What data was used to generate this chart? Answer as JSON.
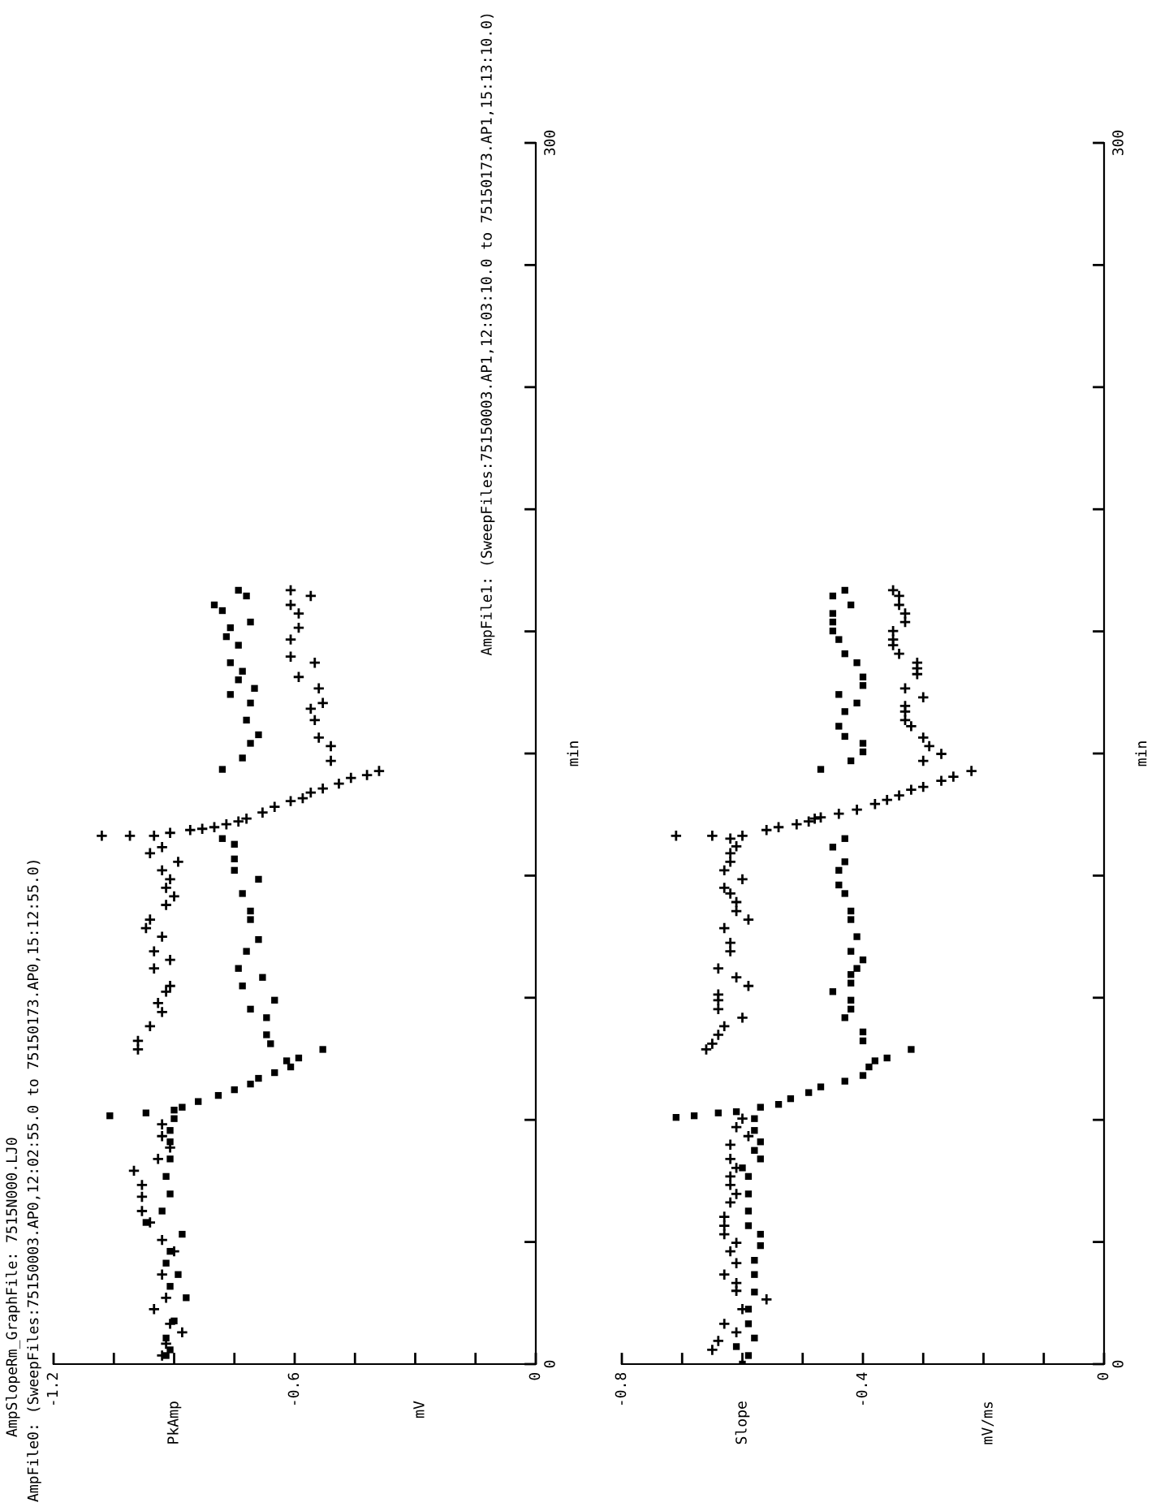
{
  "chart_data": [
    {
      "type": "scatter",
      "title": "AmpSlopeRm_GraphFile: 7515N000.LJ0",
      "subtitle": "AmpFile0: (SweepFiles:75150003.AP0,12:02:55.0 to 75150173.AP0,15:12:55.0)",
      "annotations": [
        "AmpFile1: (SweepFiles:75150003.AP1,12:03:10.0 to 75150173.AP1,15:13:10.0)",
        "PkAmp",
        "mV"
      ],
      "ylabel": "min",
      "ylim": [
        0,
        300
      ],
      "yticks": [
        0,
        {
          "value": 30,
          "label": null
        },
        {
          "value": 60,
          "label": null
        },
        {
          "value": 90,
          "label": null
        },
        {
          "value": 120,
          "label": null
        },
        {
          "value": 150,
          "label": null
        },
        {
          "value": 180,
          "label": null
        },
        {
          "value": 210,
          "label": null
        },
        {
          "value": 240,
          "label": null
        },
        {
          "value": 270,
          "label": null
        },
        300
      ],
      "xlim": [
        -1.2,
        0
      ],
      "xticks": [
        -1.2,
        {
          "value": -1.05,
          "label": null
        },
        {
          "value": -0.9,
          "label": null
        },
        {
          "value": -0.75,
          "label": null
        },
        -0.6,
        {
          "value": -0.45,
          "label": null
        },
        {
          "value": -0.3,
          "label": null
        },
        {
          "value": -0.15,
          "label": null
        },
        0
      ],
      "series": [
        {
          "color": "#000000",
          "marker": "square",
          "values": [
            2.1,
            3.5,
            6.4,
            10.6,
            16.3,
            19.1,
            22.0,
            24.8,
            27.7,
            31.9,
            34.8,
            37.6,
            41.8,
            46.1,
            50.4,
            54.6,
            57.4,
            60.3,
            61.0,
            61.7,
            62.4,
            63.1,
            64.5,
            66.0,
            67.4,
            68.8,
            70.2,
            71.6,
            73.0,
            74.5,
            75.2,
            77.3,
            78.7,
            80.9,
            85.1,
            87.2,
            89.4,
            92.9,
            95.0,
            97.2,
            101.4,
            104.3,
            109.2,
            111.3,
            115.6,
            119.1,
            121.3,
            124.1,
            127.7,
            129.1,
            146.1,
            148.9,
            152.5,
            154.6,
            158.2,
            162.4,
            164.5,
            166.0,
            168.1,
            170.2,
            172.3,
            176.6,
            178.7,
            180.9,
            182.3,
            185.1,
            186.5,
            188.7,
            190.1
          ],
          "x": [
            -0.92,
            -0.91,
            -0.92,
            -0.9,
            -0.87,
            -0.91,
            -0.89,
            -0.92,
            -0.91,
            -0.88,
            -0.97,
            -0.93,
            -0.91,
            -0.92,
            -0.91,
            -0.91,
            -0.91,
            -0.9,
            -1.06,
            -0.97,
            -0.9,
            -0.88,
            -0.84,
            -0.79,
            -0.75,
            -0.71,
            -0.69,
            -0.65,
            -0.61,
            -0.62,
            -0.59,
            -0.53,
            -0.66,
            -0.67,
            -0.67,
            -0.71,
            -0.65,
            -0.73,
            -0.68,
            -0.74,
            -0.72,
            -0.69,
            -0.71,
            -0.71,
            -0.73,
            -0.69,
            -0.75,
            -0.75,
            -0.75,
            -0.78,
            -0.78,
            -0.73,
            -0.71,
            -0.69,
            -0.72,
            -0.71,
            -0.76,
            -0.7,
            -0.74,
            -0.73,
            -0.76,
            -0.74,
            -0.77,
            -0.76,
            -0.71,
            -0.78,
            -0.8,
            -0.72,
            -0.74
          ]
        },
        {
          "color": "#000000",
          "marker": "cross",
          "values": [
            2.1,
            5.0,
            7.8,
            9.9,
            13.5,
            16.3,
            22.0,
            27.7,
            30.5,
            34.8,
            37.6,
            41.1,
            44.0,
            47.5,
            50.4,
            53.2,
            56.0,
            58.9,
            77.3,
            79.4,
            83.0,
            86.5,
            88.7,
            91.5,
            92.9,
            97.2,
            99.3,
            101.4,
            105.0,
            107.1,
            109.2,
            112.8,
            114.9,
            117.0,
            119.1,
            121.3,
            123.4,
            125.5,
            127.0,
            129.8,
            129.8,
            129.8,
            130.5,
            131.2,
            131.5,
            131.9,
            132.6,
            133.3,
            134.0,
            135.5,
            136.9,
            138.3,
            139.0,
            140.4,
            141.4,
            142.6,
            144.0,
            144.7,
            145.7,
            148.2,
            151.8,
            153.9,
            158.2,
            161.0,
            162.4,
            166.0,
            168.8,
            172.3,
            173.8,
            178.0,
            180.9,
            184.4,
            186.5,
            188.7,
            190.1
          ],
          "x": [
            -0.93,
            -0.92,
            -0.88,
            -0.91,
            -0.95,
            -0.92,
            -0.93,
            -0.9,
            -0.93,
            -0.96,
            -0.98,
            -0.98,
            -0.98,
            -1.0,
            -0.94,
            -0.91,
            -0.93,
            -0.93,
            -0.99,
            -0.99,
            -0.96,
            -0.93,
            -0.94,
            -0.92,
            -0.91,
            -0.95,
            -0.91,
            -0.95,
            -0.93,
            -0.97,
            -0.96,
            -0.92,
            -0.9,
            -0.92,
            -0.91,
            -0.93,
            -0.89,
            -0.96,
            -0.93,
            -0.95,
            -1.01,
            -1.08,
            -0.91,
            -0.86,
            -0.83,
            -0.8,
            -0.77,
            -0.74,
            -0.72,
            -0.68,
            -0.65,
            -0.61,
            -0.58,
            -0.56,
            -0.53,
            -0.49,
            -0.46,
            -0.42,
            -0.39,
            -0.51,
            -0.51,
            -0.54,
            -0.55,
            -0.56,
            -0.53,
            -0.54,
            -0.59,
            -0.55,
            -0.61,
            -0.61,
            -0.59,
            -0.59,
            -0.61,
            -0.56,
            -0.61
          ]
        }
      ]
    },
    {
      "type": "scatter",
      "annotations": [
        "Slope",
        "mV/ms"
      ],
      "ylabel": "min",
      "ylim": [
        0,
        300
      ],
      "yticks": [
        0,
        {
          "value": 30,
          "label": null
        },
        {
          "value": 60,
          "label": null
        },
        {
          "value": 90,
          "label": null
        },
        {
          "value": 120,
          "label": null
        },
        {
          "value": 150,
          "label": null
        },
        {
          "value": 180,
          "label": null
        },
        {
          "value": 210,
          "label": null
        },
        {
          "value": 240,
          "label": null
        },
        {
          "value": 270,
          "label": null
        },
        300
      ],
      "xlim": [
        -0.8,
        0
      ],
      "xticks": [
        -0.8,
        {
          "value": -0.7,
          "label": null
        },
        {
          "value": -0.6,
          "label": null
        },
        {
          "value": -0.5,
          "label": null
        },
        -0.4,
        {
          "value": -0.3,
          "label": null
        },
        {
          "value": -0.2,
          "label": null
        },
        {
          "value": -0.1,
          "label": null
        },
        0
      ],
      "series": [
        {
          "color": "#000000",
          "marker": "square",
          "values": [
            0,
            2.1,
            4.3,
            6.4,
            9.9,
            13.5,
            17.7,
            22.0,
            25.5,
            29.1,
            31.9,
            34.0,
            37.6,
            41.8,
            46.1,
            48.2,
            50.4,
            52.5,
            54.6,
            57.4,
            60.3,
            60.6,
            61.0,
            61.7,
            62.0,
            63.1,
            63.8,
            65.2,
            66.7,
            68.1,
            69.5,
            70.9,
            73.0,
            74.5,
            75.2,
            77.3,
            79.4,
            81.6,
            85.1,
            87.2,
            89.4,
            91.5,
            93.6,
            95.7,
            97.2,
            99.3,
            101.4,
            105.0,
            109.2,
            111.3,
            115.6,
            117.7,
            121.3,
            123.4,
            127.0,
            129.1,
            146.1,
            148.2,
            150.4,
            152.5,
            154.2,
            156.7,
            160.3,
            162.4,
            164.5,
            166.7,
            168.8,
            172.3,
            174.5,
            178.0,
            180.1,
            182.3,
            184.4,
            186.5,
            188.7,
            190.1
          ],
          "x": [
            -0.6,
            -0.59,
            -0.61,
            -0.58,
            -0.59,
            -0.59,
            -0.58,
            -0.58,
            -0.58,
            -0.57,
            -0.57,
            -0.59,
            -0.59,
            -0.59,
            -0.59,
            -0.6,
            -0.57,
            -0.58,
            -0.57,
            -0.58,
            -0.58,
            -0.71,
            -0.68,
            -0.64,
            -0.61,
            -0.57,
            -0.54,
            -0.52,
            -0.49,
            -0.47,
            -0.43,
            -0.4,
            -0.39,
            -0.38,
            -0.36,
            -0.32,
            -0.4,
            -0.4,
            -0.43,
            -0.42,
            -0.42,
            -0.45,
            -0.42,
            -0.42,
            -0.41,
            -0.4,
            -0.42,
            -0.41,
            -0.42,
            -0.42,
            -0.43,
            -0.44,
            -0.44,
            -0.43,
            -0.45,
            -0.43,
            -0.47,
            -0.42,
            -0.4,
            -0.4,
            -0.43,
            -0.44,
            -0.43,
            -0.41,
            -0.44,
            -0.4,
            -0.4,
            -0.41,
            -0.43,
            -0.44,
            -0.45,
            -0.45,
            -0.45,
            -0.42,
            -0.45,
            -0.43
          ]
        },
        {
          "color": "#000000",
          "marker": "cross",
          "values": [
            3.5,
            5.7,
            7.8,
            9.9,
            13.5,
            15.9,
            18.0,
            19.9,
            22.0,
            24.8,
            27.7,
            29.8,
            31.9,
            34.0,
            36.2,
            39.7,
            41.8,
            44.0,
            46.1,
            48.2,
            50.4,
            53.9,
            56.0,
            58.2,
            60.3,
            77.3,
            78.7,
            80.9,
            83.0,
            85.1,
            87.2,
            89.4,
            90.8,
            92.9,
            95.0,
            97.2,
            101.4,
            103.5,
            107.1,
            109.2,
            111.3,
            113.5,
            115.6,
            117.0,
            119.1,
            121.3,
            123.4,
            125.5,
            127.2,
            129.1,
            129.8,
            129.8,
            129.8,
            131.2,
            131.9,
            132.6,
            133.3,
            134.0,
            134.3,
            135.2,
            136.2,
            137.6,
            138.6,
            139.7,
            141.1,
            141.8,
            143.3,
            144.3,
            145.7,
            148.2,
            149.9,
            151.8,
            153.9,
            156.7,
            158.2,
            160.3,
            161.7,
            163.8,
            166.0,
            169.5,
            170.9,
            172.3,
            174.5,
            176.6,
            178.0,
            180.1,
            182.3,
            184.4,
            186.5,
            188.7,
            190.1
          ],
          "x": [
            -0.65,
            -0.64,
            -0.61,
            -0.63,
            -0.6,
            -0.56,
            -0.61,
            -0.61,
            -0.63,
            -0.61,
            -0.62,
            -0.61,
            -0.63,
            -0.63,
            -0.63,
            -0.62,
            -0.61,
            -0.62,
            -0.62,
            -0.61,
            -0.62,
            -0.62,
            -0.59,
            -0.61,
            -0.6,
            -0.66,
            -0.65,
            -0.64,
            -0.63,
            -0.6,
            -0.64,
            -0.64,
            -0.64,
            -0.59,
            -0.61,
            -0.64,
            -0.62,
            -0.62,
            -0.63,
            -0.59,
            -0.61,
            -0.61,
            -0.62,
            -0.63,
            -0.6,
            -0.63,
            -0.62,
            -0.62,
            -0.61,
            -0.62,
            -0.65,
            -0.71,
            -0.6,
            -0.56,
            -0.54,
            -0.51,
            -0.49,
            -0.48,
            -0.47,
            -0.44,
            -0.41,
            -0.38,
            -0.36,
            -0.34,
            -0.32,
            -0.3,
            -0.27,
            -0.25,
            -0.22,
            -0.3,
            -0.27,
            -0.29,
            -0.3,
            -0.32,
            -0.33,
            -0.33,
            -0.33,
            -0.3,
            -0.33,
            -0.31,
            -0.31,
            -0.31,
            -0.34,
            -0.35,
            -0.35,
            -0.35,
            -0.33,
            -0.33,
            -0.34,
            -0.34,
            -0.35
          ]
        }
      ]
    }
  ]
}
